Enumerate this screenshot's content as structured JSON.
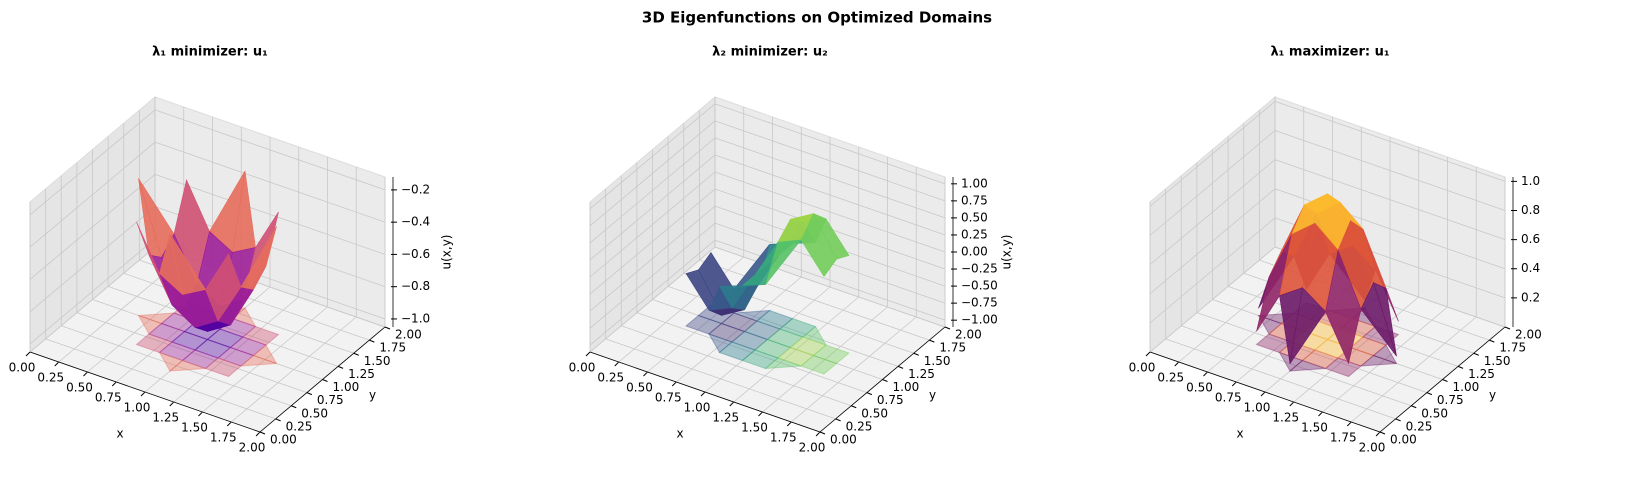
{
  "title": "3D Eigenfunctions on Optimized Domains",
  "chart_data": [
    {
      "type": "surface",
      "title": "λ₁ minimizer: u₁",
      "x_label": "x",
      "y_label": "y",
      "z_label": "u(x,y)",
      "cmap": "plasma",
      "x": [
        0.4,
        0.6,
        0.8,
        1.0,
        1.2,
        1.4,
        1.6
      ],
      "y": [
        0.4,
        0.6,
        0.8,
        1.0,
        1.2,
        1.4,
        1.6
      ],
      "z": [
        [
          null,
          null,
          null,
          -0.2,
          null,
          null,
          null
        ],
        [
          null,
          -0.29,
          -0.56,
          -0.64,
          -0.56,
          -0.29,
          null
        ],
        [
          null,
          -0.56,
          -0.82,
          -0.91,
          -0.82,
          -0.56,
          null
        ],
        [
          -0.2,
          -0.64,
          -0.91,
          -1,
          -0.91,
          -0.64,
          -0.2
        ],
        [
          null,
          -0.56,
          -0.82,
          -0.91,
          -0.82,
          -0.56,
          null
        ],
        [
          null,
          -0.29,
          -0.56,
          -0.64,
          -0.56,
          -0.29,
          null
        ],
        [
          null,
          null,
          null,
          -0.2,
          null,
          null,
          null
        ]
      ],
      "xlim": [
        0,
        2
      ],
      "ylim": [
        0,
        2
      ],
      "zlim": [
        -1.05,
        -0.12
      ],
      "xticks": [
        {
          "value": 0,
          "label": "0.00"
        },
        0.25,
        {
          "value": 0.5,
          "label": "0.50"
        },
        0.75,
        {
          "value": 1,
          "label": "1.00"
        },
        1.25,
        {
          "value": 1.5,
          "label": "1.50"
        },
        1.75,
        {
          "value": 2,
          "label": "2.00"
        }
      ],
      "yticks": [
        {
          "value": 0,
          "label": "0.00"
        },
        0.25,
        {
          "value": 0.5,
          "label": "0.50"
        },
        0.75,
        {
          "value": 1,
          "label": "1.00"
        },
        1.25,
        {
          "value": 1.5,
          "label": "1.50"
        },
        1.75,
        {
          "value": 2,
          "label": "2.00"
        }
      ],
      "zticks": [
        {
          "value": -1,
          "label": "−1.0"
        },
        {
          "value": -0.8,
          "label": "−0.8"
        },
        {
          "value": -0.6,
          "label": "−0.6"
        },
        {
          "value": -0.4,
          "label": "−0.4"
        },
        {
          "value": -0.2,
          "label": "−0.2"
        }
      ]
    },
    {
      "type": "surface",
      "title": "λ₂ minimizer: u₂",
      "x_label": "x",
      "y_label": "y",
      "z_label": "u(x,y)",
      "cmap": "viridis",
      "x": [
        0.4,
        0.6,
        0.8,
        1.0,
        1.2,
        1.4,
        1.6
      ],
      "y": [
        0.4,
        0.6,
        0.8,
        1.0,
        1.2,
        1.4,
        1.6
      ],
      "z": [
        [
          null,
          null,
          null,
          null,
          null,
          null,
          null
        ],
        [
          null,
          null,
          -0.13,
          0,
          0.13,
          null,
          null
        ],
        [
          -0.33,
          -0.75,
          -0.6,
          0,
          0.6,
          0.75,
          0.33
        ],
        [
          -0.43,
          -0.98,
          -0.78,
          0,
          0.78,
          0.98,
          0.43
        ],
        [
          -0.33,
          -0.75,
          -0.6,
          0,
          0.6,
          0.75,
          0.33
        ],
        [
          null,
          null,
          -0.13,
          0,
          0.13,
          null,
          null
        ],
        [
          null,
          null,
          null,
          null,
          null,
          null,
          null
        ]
      ],
      "xlim": [
        0,
        2
      ],
      "ylim": [
        0,
        2
      ],
      "zlim": [
        -1.1,
        1.1
      ],
      "xticks": [
        {
          "value": 0,
          "label": "0.00"
        },
        0.25,
        {
          "value": 0.5,
          "label": "0.50"
        },
        0.75,
        {
          "value": 1,
          "label": "1.00"
        },
        1.25,
        {
          "value": 1.5,
          "label": "1.50"
        },
        1.75,
        {
          "value": 2,
          "label": "2.00"
        }
      ],
      "yticks": [
        {
          "value": 0,
          "label": "0.00"
        },
        0.25,
        {
          "value": 0.5,
          "label": "0.50"
        },
        0.75,
        {
          "value": 1,
          "label": "1.00"
        },
        1.25,
        {
          "value": 1.5,
          "label": "1.50"
        },
        1.75,
        {
          "value": 2,
          "label": "2.00"
        }
      ],
      "zticks": [
        {
          "value": -1,
          "label": "−1.00"
        },
        {
          "value": -0.75,
          "label": "−0.75"
        },
        {
          "value": -0.5,
          "label": "−0.50"
        },
        {
          "value": -0.25,
          "label": "−0.25"
        },
        {
          "value": 0,
          "label": "0.00"
        },
        0.25,
        {
          "value": 0.5,
          "label": "0.50"
        },
        0.75,
        {
          "value": 1,
          "label": "1.00"
        }
      ]
    },
    {
      "type": "surface",
      "title": "λ₁ maximizer: u₁",
      "x_label": "x",
      "y_label": "y",
      "cmap": "inferno",
      "x": [
        0.4,
        0.6,
        0.8,
        1.0,
        1.2,
        1.4,
        1.6
      ],
      "y": [
        0.4,
        0.6,
        0.8,
        1.0,
        1.2,
        1.4,
        1.6
      ],
      "z": [
        [
          null,
          null,
          null,
          0.05,
          null,
          null,
          null
        ],
        [
          null,
          0.09,
          0.39,
          0.5,
          0.39,
          0.09,
          null
        ],
        [
          null,
          0.39,
          0.74,
          0.87,
          0.74,
          0.39,
          null
        ],
        [
          0.05,
          0.5,
          0.87,
          1,
          0.87,
          0.5,
          0.05
        ],
        [
          null,
          0.39,
          0.74,
          0.87,
          0.74,
          0.39,
          null
        ],
        [
          null,
          0.09,
          0.39,
          0.5,
          0.39,
          0.09,
          null
        ],
        [
          null,
          null,
          null,
          0.05,
          null,
          null,
          null
        ]
      ],
      "xlim": [
        0,
        2
      ],
      "ylim": [
        0,
        2
      ],
      "zlim": [
        0,
        1.03
      ],
      "xticks": [
        {
          "value": 0,
          "label": "0.00"
        },
        0.25,
        {
          "value": 0.5,
          "label": "0.50"
        },
        0.75,
        {
          "value": 1,
          "label": "1.00"
        },
        1.25,
        {
          "value": 1.5,
          "label": "1.50"
        },
        1.75,
        {
          "value": 2,
          "label": "2.00"
        }
      ],
      "yticks": [
        {
          "value": 0,
          "label": "0.00"
        },
        0.25,
        {
          "value": 0.5,
          "label": "0.50"
        },
        0.75,
        {
          "value": 1,
          "label": "1.00"
        },
        1.25,
        {
          "value": 1.5,
          "label": "1.50"
        },
        1.75,
        {
          "value": 2,
          "label": "2.00"
        }
      ],
      "zticks": [
        0.2,
        0.4,
        0.6,
        0.8,
        {
          "value": 1,
          "label": "1.0"
        }
      ]
    }
  ]
}
